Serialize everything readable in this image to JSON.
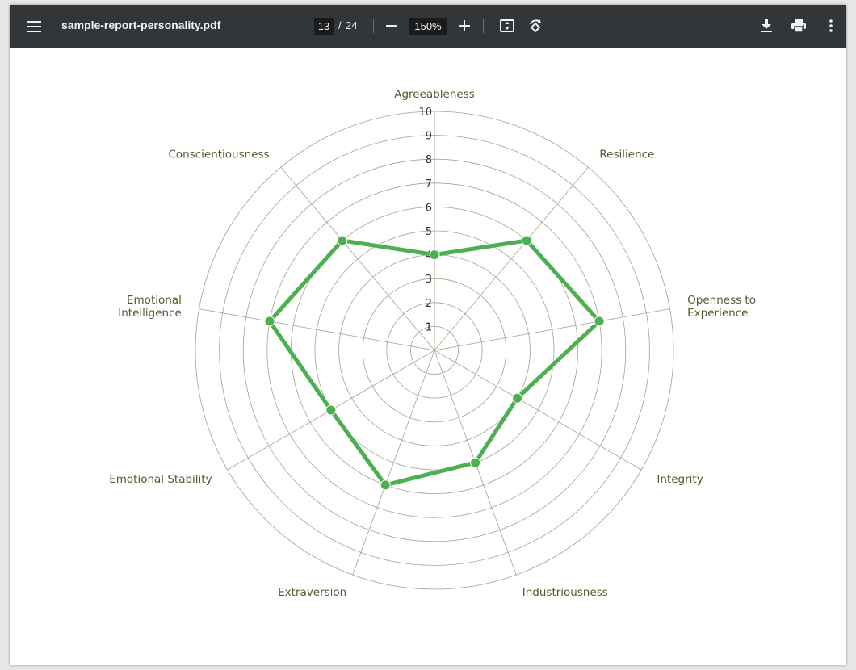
{
  "toolbar": {
    "menu_icon": "menu-icon",
    "title": "sample-report-personality.pdf",
    "page_current": "13",
    "page_separator": "/",
    "page_total": "24",
    "zoom_out_icon": "minus-icon",
    "zoom_level": "150%",
    "zoom_in_icon": "plus-icon",
    "fit_icon": "fit-to-page-icon",
    "rotate_icon": "rotate-icon",
    "download_icon": "download-icon",
    "print_icon": "print-icon",
    "more_icon": "more-vert-icon"
  },
  "colors": {
    "toolbar_bg": "#323639",
    "series": "#4caf50",
    "grid": "#a3a38c",
    "label": "#4f5b2e"
  },
  "chart_data": {
    "type": "radar",
    "axes": [
      [
        "Agreeableness"
      ],
      [
        "Resilience"
      ],
      [
        "Openness to",
        "Experience"
      ],
      [
        "Integrity"
      ],
      [
        "Industriousness"
      ],
      [
        "Extraversion"
      ],
      [
        "Emotional Stability"
      ],
      [
        "Emotional",
        "Intelligence"
      ],
      [
        "Conscientiousness"
      ]
    ],
    "values": [
      4,
      6,
      7,
      4,
      5,
      6,
      5,
      7,
      6
    ],
    "r_range": [
      0,
      10
    ],
    "r_ticks": [
      "1",
      "2",
      "3",
      "4",
      "5",
      "6",
      "7",
      "8",
      "9",
      "10"
    ],
    "grid": true,
    "legend": "none"
  }
}
